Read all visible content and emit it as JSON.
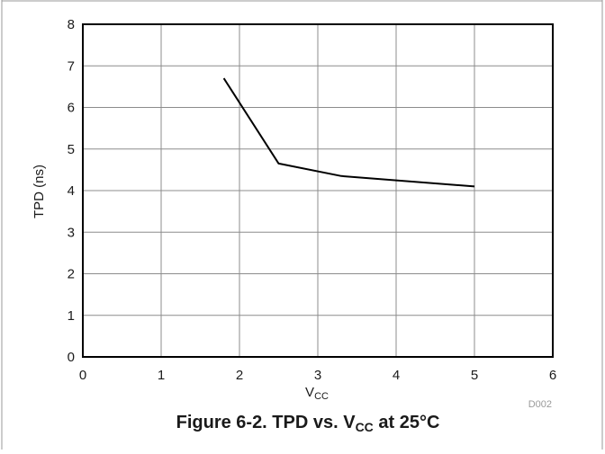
{
  "chart_data": {
    "type": "line",
    "xlabel": "V",
    "xlabel_sub": "CC",
    "ylabel": "TPD (ns)",
    "xlim": [
      0,
      6
    ],
    "ylim": [
      0,
      8
    ],
    "xticks": [
      "0",
      "1",
      "2",
      "3",
      "4",
      "5",
      "6"
    ],
    "yticks": [
      "0",
      "1",
      "2",
      "3",
      "4",
      "5",
      "6",
      "7",
      "8"
    ],
    "grid": true,
    "series": [
      {
        "x": [
          1.8,
          2.5,
          3.3,
          5.0
        ],
        "y": [
          6.7,
          4.65,
          4.35,
          4.1
        ]
      }
    ]
  },
  "figure_id": "D002",
  "caption": {
    "prefix": "Figure 6-2. TPD vs. V",
    "sub": "CC",
    "suffix": " at 25°C"
  },
  "colors": {
    "line": "#000000",
    "grid": "#8c8c8c",
    "frame": "#000000",
    "border": "#999999"
  }
}
